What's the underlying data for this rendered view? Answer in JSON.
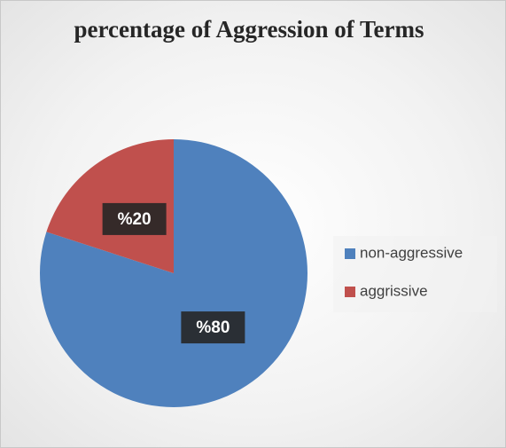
{
  "chart_data": {
    "type": "pie",
    "title": "percentage of Aggression of Terms",
    "categories": [
      "non-aggressive",
      "aggrissive"
    ],
    "values": [
      80,
      20
    ],
    "value_labels": [
      "%80",
      "%20"
    ],
    "colors": [
      "#4f81bd",
      "#c0504d"
    ],
    "legend": "right"
  }
}
